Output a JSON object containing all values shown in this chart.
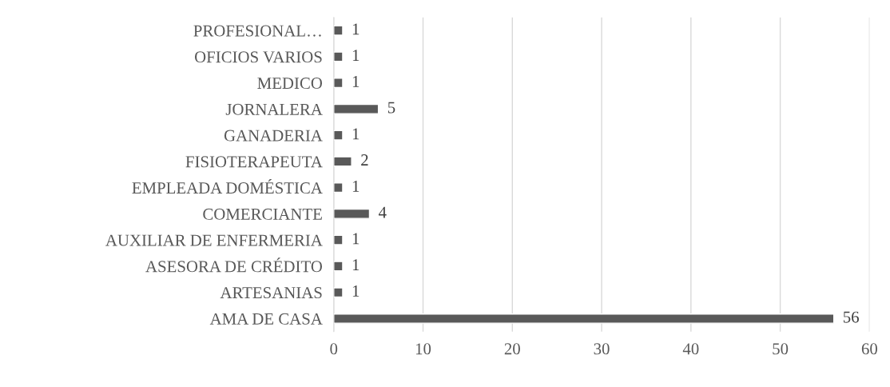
{
  "chart_data": {
    "type": "bar",
    "orientation": "horizontal",
    "categories": [
      "PROFESIONAL…",
      "OFICIOS VARIOS",
      "MEDICO",
      "JORNALERA",
      "GANADERIA",
      "FISIOTERAPEUTA",
      "EMPLEADA DOMÉSTICA",
      "COMERCIANTE",
      "AUXILIAR DE ENFERMERIA",
      "ASESORA DE CRÉDITO",
      "ARTESANIAS",
      "AMA DE CASA"
    ],
    "values": [
      1,
      1,
      1,
      5,
      1,
      2,
      1,
      4,
      1,
      1,
      1,
      56
    ],
    "color": "#595959",
    "xlim": [
      0,
      60
    ],
    "xticks": [
      0,
      10,
      20,
      30,
      40,
      50,
      60
    ],
    "grid": "x",
    "data_labels": true
  }
}
